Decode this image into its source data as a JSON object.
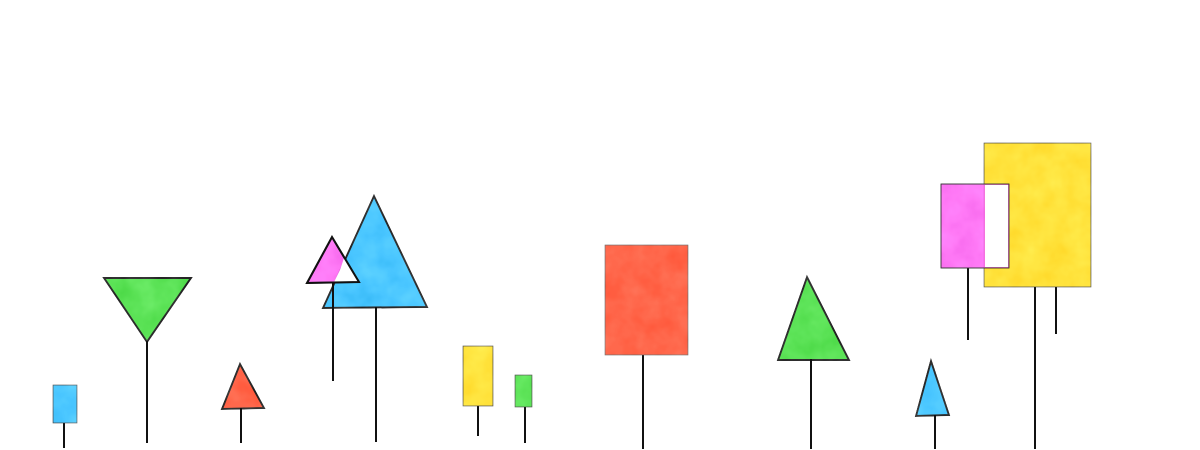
{
  "scene": {
    "background": "#ffffff",
    "stroke_color": "#111111",
    "palette": {
      "cyan_blue": "#2fb4f2",
      "green": "#3fd23a",
      "red": "#ff4a2a",
      "magenta": "#f05ee6",
      "yellow": "#ffd11a"
    },
    "shapes": [
      {
        "name": "small-cyan-square-sign",
        "kind": "rect",
        "color": "#2fb4f2"
      },
      {
        "name": "green-inverted-triangle-sign",
        "kind": "triangle-down",
        "color": "#3fd23a"
      },
      {
        "name": "small-red-triangle-sign",
        "kind": "triangle-up",
        "color": "#ff4a2a"
      },
      {
        "name": "magenta-triangle-sign",
        "kind": "triangle-up",
        "color": "#f05ee6"
      },
      {
        "name": "large-blue-triangle-sign",
        "kind": "triangle-up",
        "color": "#2fb4f2"
      },
      {
        "name": "yellow-rectangle-sign",
        "kind": "rect",
        "color": "#ffd11a"
      },
      {
        "name": "small-green-rectangle-sign",
        "kind": "rect",
        "color": "#3fd23a"
      },
      {
        "name": "large-red-rectangle-sign",
        "kind": "rect",
        "color": "#ff4a2a"
      },
      {
        "name": "green-triangle-sign",
        "kind": "triangle-up",
        "color": "#3fd23a"
      },
      {
        "name": "small-blue-triangle-sign",
        "kind": "triangle-up",
        "color": "#2fb4f2"
      },
      {
        "name": "magenta-rectangle-sign",
        "kind": "rect",
        "color": "#f05ee6"
      },
      {
        "name": "large-yellow-rectangle-sign",
        "kind": "rect",
        "color": "#ffd11a"
      }
    ]
  }
}
